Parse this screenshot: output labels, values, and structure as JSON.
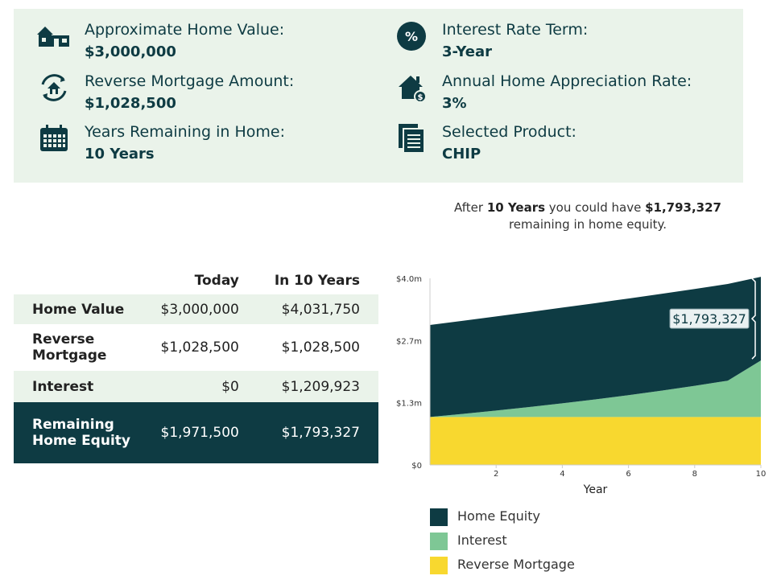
{
  "summary": {
    "home_value": {
      "label": "Approximate Home Value:",
      "value": "$3,000,000",
      "icon": "house-icon"
    },
    "reverse_mortgage": {
      "label": "Reverse Mortgage Amount:",
      "value": "$1,028,500",
      "icon": "house-cycle-icon"
    },
    "years_remaining": {
      "label": "Years Remaining in Home:",
      "value": "10 Years",
      "icon": "calendar-icon"
    },
    "rate_term": {
      "label": "Interest Rate Term:",
      "value": "3-Year",
      "icon": "percent-icon",
      "icon_text": "%"
    },
    "appreciation": {
      "label": "Annual Home Appreciation Rate:",
      "value": "3%",
      "icon": "house-dollar-icon",
      "icon_text": "$"
    },
    "product": {
      "label": "Selected Product:",
      "value": "CHIP",
      "icon": "documents-icon"
    }
  },
  "caption": {
    "prefix": "After ",
    "years": "10 Years",
    "middle": " you could have ",
    "amount": "$1,793,327",
    "suffix": "remaining in home equity."
  },
  "table": {
    "headers": [
      "",
      "Today",
      "In 10 Years"
    ],
    "rows": [
      {
        "label": "Home Value",
        "today": "$3,000,000",
        "future": "$4,031,750"
      },
      {
        "label": "Reverse Mortgage",
        "today": "$1,028,500",
        "future": "$1,028,500"
      },
      {
        "label": "Interest",
        "today": "$0",
        "future": "$1,209,923"
      },
      {
        "label": "Remaining Home Equity",
        "today": "$1,971,500",
        "future": "$1,793,327"
      }
    ]
  },
  "chart_data": {
    "type": "area",
    "stacked": true,
    "xlabel": "Year",
    "x": [
      0,
      1,
      2,
      3,
      4,
      5,
      6,
      7,
      8,
      9,
      10
    ],
    "x_ticks": [
      "2",
      "4",
      "6",
      "8",
      "10"
    ],
    "y_ticks": [
      "$0",
      "$1.3m",
      "$2.7m",
      "$4.0m"
    ],
    "ylim": [
      0,
      4000000
    ],
    "xlim": [
      0,
      10
    ],
    "series": [
      {
        "name": "Reverse Mortgage",
        "color": "#f8d82f",
        "values": [
          1028500,
          1028500,
          1028500,
          1028500,
          1028500,
          1028500,
          1028500,
          1028500,
          1028500,
          1028500,
          1028500
        ]
      },
      {
        "name": "Interest",
        "color": "#7ec795",
        "values": [
          0,
          66000,
          137000,
          212000,
          292000,
          377000,
          468000,
          565000,
          668000,
          778000,
          1209923
        ]
      },
      {
        "name": "Home Equity",
        "color": "#0e3b43",
        "values": [
          1971500,
          1995500,
          2017000,
          2036000,
          2052000,
          2063000,
          2071000,
          2075000,
          2075000,
          2072000,
          1793327
        ]
      }
    ],
    "annotation": {
      "text": "$1,793,327",
      "x": 10
    }
  },
  "legend": [
    {
      "label": "Home Equity",
      "color": "#0e3b43"
    },
    {
      "label": "Interest",
      "color": "#7ec795"
    },
    {
      "label": "Reverse Mortgage",
      "color": "#f8d82f"
    }
  ]
}
